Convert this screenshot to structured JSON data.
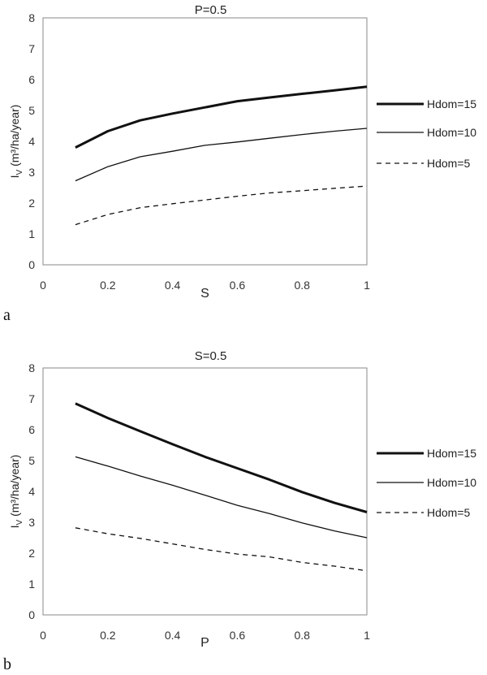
{
  "chart_data": [
    {
      "type": "line",
      "panel_label": "a",
      "title": "P=0.5",
      "xlabel": "S",
      "ylabel": "I",
      "ylabel_sub": "V",
      "ylabel_unit": " (m³/ha/year)",
      "xlim": [
        0,
        1
      ],
      "ylim": [
        0,
        8
      ],
      "xticks": [
        "0",
        "0.2",
        "0.4",
        "0.6",
        "0.8",
        "1"
      ],
      "yticks": [
        "0",
        "1",
        "2",
        "3",
        "4",
        "5",
        "6",
        "7",
        "8"
      ],
      "x": [
        0.1,
        0.2,
        0.3,
        0.4,
        0.5,
        0.6,
        0.7,
        0.8,
        0.9,
        1.0
      ],
      "series": [
        {
          "name": "Hdom=15",
          "style": "thick",
          "values": [
            3.8,
            4.33,
            4.68,
            4.9,
            5.1,
            5.3,
            5.42,
            5.54,
            5.65,
            5.77
          ]
        },
        {
          "name": "Hdom=10",
          "style": "thin",
          "values": [
            2.72,
            3.18,
            3.5,
            3.68,
            3.87,
            3.98,
            4.1,
            4.22,
            4.33,
            4.42
          ]
        },
        {
          "name": "Hdom=5",
          "style": "dashed",
          "values": [
            1.3,
            1.63,
            1.85,
            1.98,
            2.1,
            2.22,
            2.33,
            2.4,
            2.48,
            2.55
          ]
        }
      ]
    },
    {
      "type": "line",
      "panel_label": "b",
      "title": "S=0.5",
      "xlabel": "P",
      "ylabel": "I",
      "ylabel_sub": "V",
      "ylabel_unit": " (m³/ha/year)",
      "xlim": [
        0,
        1
      ],
      "ylim": [
        0,
        8
      ],
      "xticks": [
        "0",
        "0.2",
        "0.4",
        "0.6",
        "0.8",
        "1"
      ],
      "yticks": [
        "0",
        "1",
        "2",
        "3",
        "4",
        "5",
        "6",
        "7",
        "8"
      ],
      "x": [
        0.1,
        0.2,
        0.3,
        0.4,
        0.5,
        0.6,
        0.7,
        0.8,
        0.9,
        1.0
      ],
      "series": [
        {
          "name": "Hdom=15",
          "style": "thick",
          "values": [
            6.85,
            6.38,
            5.95,
            5.53,
            5.12,
            4.75,
            4.38,
            3.98,
            3.63,
            3.33
          ]
        },
        {
          "name": "Hdom=10",
          "style": "thin",
          "values": [
            5.12,
            4.82,
            4.5,
            4.2,
            3.88,
            3.55,
            3.28,
            2.98,
            2.72,
            2.5
          ]
        },
        {
          "name": "Hdom=5",
          "style": "dashed",
          "values": [
            2.82,
            2.63,
            2.48,
            2.3,
            2.12,
            1.97,
            1.88,
            1.7,
            1.58,
            1.43
          ]
        }
      ]
    }
  ]
}
